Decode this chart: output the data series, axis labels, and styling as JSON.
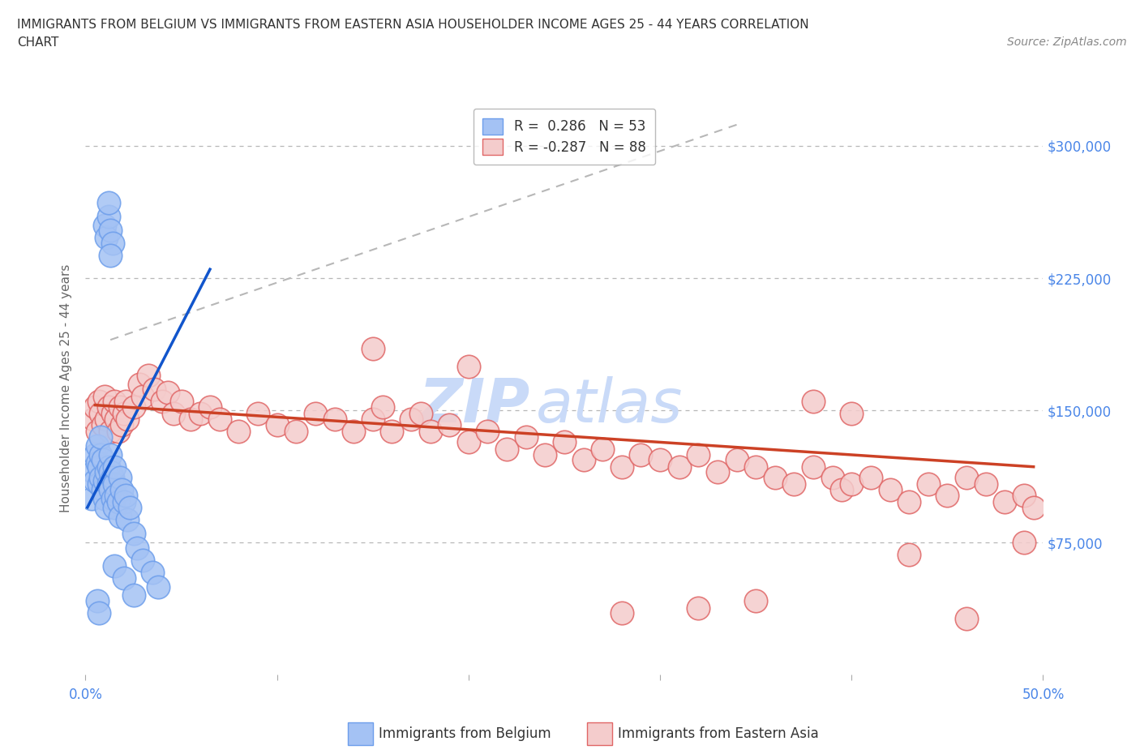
{
  "title_line1": "IMMIGRANTS FROM BELGIUM VS IMMIGRANTS FROM EASTERN ASIA HOUSEHOLDER INCOME AGES 25 - 44 YEARS CORRELATION",
  "title_line2": "CHART",
  "source": "Source: ZipAtlas.com",
  "ylabel": "Householder Income Ages 25 - 44 years",
  "belgium_R": 0.286,
  "belgium_N": 53,
  "eastern_asia_R": -0.287,
  "eastern_asia_N": 88,
  "belgium_color": "#a4c2f4",
  "eastern_asia_color": "#f4cccc",
  "belgium_edge_color": "#6d9eeb",
  "eastern_asia_edge_color": "#e06666",
  "belgium_line_color": "#1155cc",
  "eastern_asia_line_color": "#cc4125",
  "diag_line_color": "#b7b7b7",
  "grid_color": "#b7b7b7",
  "tick_label_color": "#4a86e8",
  "xlim": [
    0.0,
    0.5
  ],
  "ylim": [
    0,
    325000
  ],
  "bg_color": "#ffffff",
  "watermark_color": "#c9daf8",
  "belgium_x": [
    0.003,
    0.004,
    0.005,
    0.005,
    0.006,
    0.006,
    0.007,
    0.007,
    0.008,
    0.008,
    0.008,
    0.009,
    0.009,
    0.01,
    0.01,
    0.011,
    0.011,
    0.012,
    0.012,
    0.013,
    0.013,
    0.013,
    0.014,
    0.014,
    0.015,
    0.015,
    0.015,
    0.016,
    0.017,
    0.018,
    0.018,
    0.019,
    0.02,
    0.021,
    0.022,
    0.023,
    0.025,
    0.027,
    0.03,
    0.035,
    0.038,
    0.01,
    0.011,
    0.012,
    0.013,
    0.014,
    0.012,
    0.013,
    0.006,
    0.007,
    0.015,
    0.02,
    0.025
  ],
  "belgium_y": [
    100000,
    115000,
    125000,
    110000,
    130000,
    120000,
    118000,
    108000,
    125000,
    112000,
    135000,
    105000,
    122000,
    100000,
    110000,
    115000,
    95000,
    108000,
    118000,
    105000,
    125000,
    115000,
    100000,
    112000,
    108000,
    95000,
    118000,
    102000,
    98000,
    112000,
    90000,
    105000,
    98000,
    102000,
    88000,
    95000,
    80000,
    72000,
    65000,
    58000,
    50000,
    255000,
    248000,
    260000,
    252000,
    245000,
    268000,
    238000,
    42000,
    35000,
    62000,
    55000,
    45000
  ],
  "eastern_asia_x": [
    0.004,
    0.005,
    0.006,
    0.007,
    0.008,
    0.009,
    0.01,
    0.011,
    0.012,
    0.013,
    0.014,
    0.015,
    0.016,
    0.017,
    0.018,
    0.019,
    0.02,
    0.021,
    0.022,
    0.025,
    0.028,
    0.03,
    0.033,
    0.036,
    0.04,
    0.043,
    0.046,
    0.05,
    0.055,
    0.06,
    0.065,
    0.07,
    0.08,
    0.09,
    0.1,
    0.11,
    0.12,
    0.13,
    0.14,
    0.15,
    0.155,
    0.16,
    0.17,
    0.175,
    0.18,
    0.19,
    0.2,
    0.21,
    0.22,
    0.23,
    0.24,
    0.25,
    0.26,
    0.27,
    0.28,
    0.29,
    0.3,
    0.31,
    0.32,
    0.33,
    0.34,
    0.35,
    0.36,
    0.37,
    0.38,
    0.39,
    0.395,
    0.4,
    0.41,
    0.42,
    0.43,
    0.44,
    0.45,
    0.46,
    0.47,
    0.48,
    0.49,
    0.495,
    0.38,
    0.4,
    0.35,
    0.32,
    0.28,
    0.43,
    0.46,
    0.49,
    0.2,
    0.15
  ],
  "eastern_asia_y": [
    145000,
    152000,
    138000,
    155000,
    148000,
    142000,
    158000,
    145000,
    152000,
    138000,
    148000,
    155000,
    145000,
    138000,
    152000,
    142000,
    148000,
    155000,
    145000,
    152000,
    165000,
    158000,
    170000,
    162000,
    155000,
    160000,
    148000,
    155000,
    145000,
    148000,
    152000,
    145000,
    138000,
    148000,
    142000,
    138000,
    148000,
    145000,
    138000,
    145000,
    152000,
    138000,
    145000,
    148000,
    138000,
    142000,
    132000,
    138000,
    128000,
    135000,
    125000,
    132000,
    122000,
    128000,
    118000,
    125000,
    122000,
    118000,
    125000,
    115000,
    122000,
    118000,
    112000,
    108000,
    118000,
    112000,
    105000,
    108000,
    112000,
    105000,
    98000,
    108000,
    102000,
    112000,
    108000,
    98000,
    102000,
    95000,
    155000,
    148000,
    42000,
    38000,
    35000,
    68000,
    32000,
    75000,
    175000,
    185000
  ]
}
